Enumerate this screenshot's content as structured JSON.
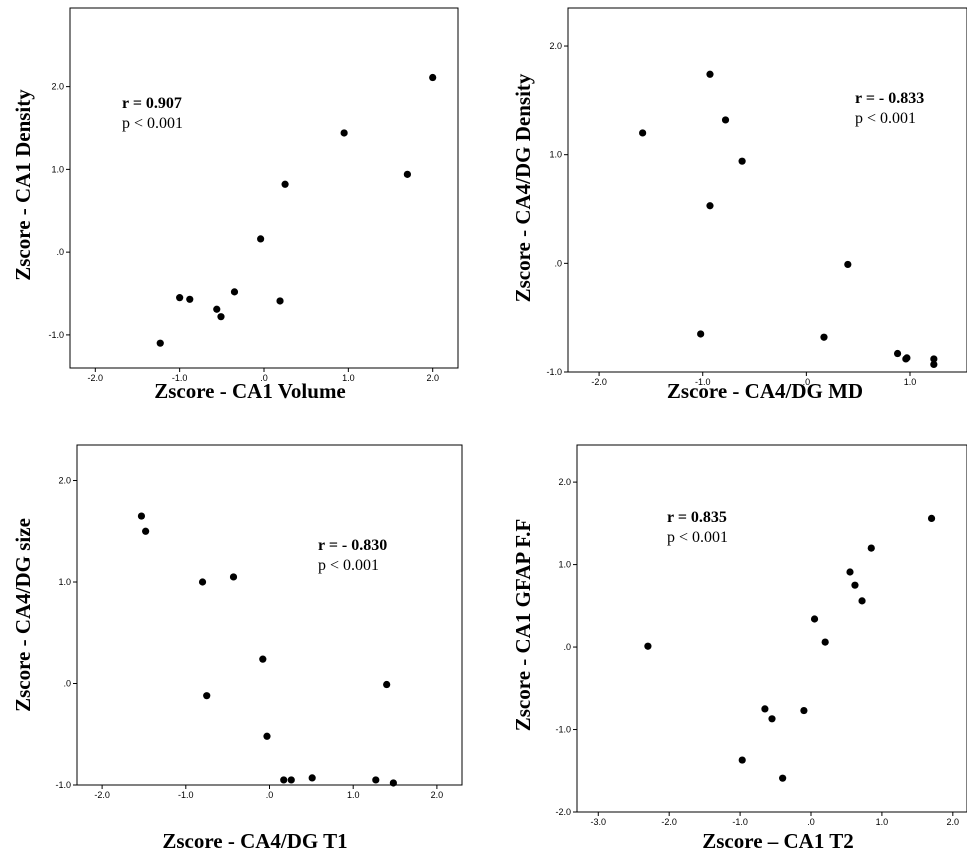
{
  "chart_data": [
    {
      "type": "scatter",
      "xlabel": "Zscore - CA1 Volume",
      "ylabel": "Zscore  - CA1 Density",
      "xticks": [
        "-2.0",
        "-1.0",
        ".0",
        "1.0",
        "2.0"
      ],
      "yticks": [
        "-1.0",
        ".0",
        "1.0",
        "2.0"
      ],
      "xlim": [
        -2.3,
        2.3
      ],
      "ylim": [
        -1.4,
        2.95
      ],
      "annotation_r": "r  = 0.907",
      "annotation_p": "p < 0.001",
      "points": [
        {
          "x": -1.23,
          "y": -1.1
        },
        {
          "x": -1.0,
          "y": -0.55
        },
        {
          "x": -0.88,
          "y": -0.57
        },
        {
          "x": -0.56,
          "y": -0.69
        },
        {
          "x": -0.51,
          "y": -0.78
        },
        {
          "x": -0.35,
          "y": -0.48
        },
        {
          "x": 0.19,
          "y": -0.59
        },
        {
          "x": -0.04,
          "y": 0.16
        },
        {
          "x": 0.25,
          "y": 0.82
        },
        {
          "x": 0.95,
          "y": 1.44
        },
        {
          "x": 1.7,
          "y": 0.94
        },
        {
          "x": 2.0,
          "y": 2.11
        }
      ]
    },
    {
      "type": "scatter",
      "xlabel": "Zscore - CA4/DG MD",
      "ylabel": "Zscore  - CA4/DG  Density",
      "xticks": [
        "-2.0",
        "-1.0",
        ".0",
        "1.0"
      ],
      "yticks": [
        "-1.0",
        ".0",
        "1.0",
        "2.0"
      ],
      "xlim": [
        -2.3,
        1.55
      ],
      "ylim": [
        -1.0,
        2.35
      ],
      "annotation_r": "r = - 0.833",
      "annotation_p": "p < 0.001",
      "points": [
        {
          "x": -1.58,
          "y": 1.2
        },
        {
          "x": -0.93,
          "y": 1.74
        },
        {
          "x": -0.78,
          "y": 1.32
        },
        {
          "x": -0.62,
          "y": 0.94
        },
        {
          "x": -0.93,
          "y": 0.53
        },
        {
          "x": -1.02,
          "y": -0.65
        },
        {
          "x": 0.4,
          "y": -0.01
        },
        {
          "x": 0.17,
          "y": -0.68
        },
        {
          "x": 0.88,
          "y": -0.83
        },
        {
          "x": 0.96,
          "y": -0.88
        },
        {
          "x": 0.97,
          "y": -0.87
        },
        {
          "x": 1.23,
          "y": -0.88
        },
        {
          "x": 1.23,
          "y": -0.93
        }
      ]
    },
    {
      "type": "scatter",
      "xlabel": "Zscore - CA4/DG T1",
      "ylabel": "Zscore - CA4/DG  size",
      "xticks": [
        "-2.0",
        "-1.0",
        ".0",
        "1.0",
        "2.0"
      ],
      "yticks": [
        "-1.0",
        ".0",
        "1.0",
        "2.0"
      ],
      "xlim": [
        -2.3,
        2.3
      ],
      "ylim": [
        -1.0,
        2.35
      ],
      "annotation_r": "r = - 0.830",
      "annotation_p": "p <  0.001",
      "points": [
        {
          "x": -1.53,
          "y": 1.65
        },
        {
          "x": -1.48,
          "y": 1.5
        },
        {
          "x": -0.8,
          "y": 1.0
        },
        {
          "x": -0.43,
          "y": 1.05
        },
        {
          "x": -0.75,
          "y": -0.12
        },
        {
          "x": -0.08,
          "y": 0.24
        },
        {
          "x": -0.03,
          "y": -0.52
        },
        {
          "x": 0.17,
          "y": -0.95
        },
        {
          "x": 0.26,
          "y": -0.95
        },
        {
          "x": 0.51,
          "y": -0.93
        },
        {
          "x": 1.27,
          "y": -0.95
        },
        {
          "x": 1.4,
          "y": -0.01
        },
        {
          "x": 1.48,
          "y": -0.98
        }
      ]
    },
    {
      "type": "scatter",
      "xlabel": "Zscore – CA1 T2",
      "ylabel": "Zscore  - CA1 GFAP F.F",
      "xticks": [
        "-3.0",
        "-2.0",
        "-1.0",
        ".0",
        "1.0",
        "2.0"
      ],
      "yticks": [
        "-2.0",
        "-1.0",
        ".0",
        "1.0",
        "2.0"
      ],
      "xlim": [
        -3.3,
        2.2
      ],
      "ylim": [
        -2.0,
        2.45
      ],
      "annotation_r": "r = 0.835",
      "annotation_p": "p < 0.001",
      "points": [
        {
          "x": -2.3,
          "y": 0.01
        },
        {
          "x": -0.65,
          "y": -0.75
        },
        {
          "x": -0.55,
          "y": -0.87
        },
        {
          "x": -0.1,
          "y": -0.77
        },
        {
          "x": -0.97,
          "y": -1.37
        },
        {
          "x": -0.4,
          "y": -1.59
        },
        {
          "x": 0.05,
          "y": 0.34
        },
        {
          "x": 0.2,
          "y": 0.06
        },
        {
          "x": 0.55,
          "y": 0.91
        },
        {
          "x": 0.62,
          "y": 0.75
        },
        {
          "x": 0.72,
          "y": 0.56
        },
        {
          "x": 0.85,
          "y": 1.2
        },
        {
          "x": 1.7,
          "y": 1.56
        }
      ]
    }
  ]
}
